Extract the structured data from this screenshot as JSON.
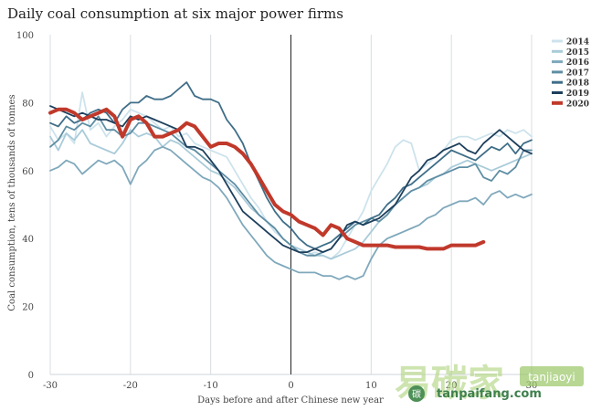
{
  "title": "Daily coal consumption at six major power firms",
  "chart_data": {
    "type": "line",
    "title": "Daily coal consumption at six major power firms",
    "xlabel": "Days before and after Chinese new year",
    "ylabel": "Coal consumption, tens of thousands of tonnes",
    "xlim": [
      -30,
      30
    ],
    "ylim": [
      0,
      100
    ],
    "x_ticks": [
      -30,
      -20,
      -10,
      0,
      10,
      20,
      30
    ],
    "y_ticks": [
      0,
      20,
      40,
      60,
      80,
      100
    ],
    "grid": "vertical",
    "reference_line_x": 0,
    "legend_position": "top-right",
    "series": [
      {
        "name": "2014",
        "color": "#cde3ec",
        "x": [
          -30,
          -29,
          -28,
          -27,
          -26,
          -25,
          -24,
          -23,
          -22,
          -21,
          -20,
          -19,
          -18,
          -17,
          -16,
          -15,
          -14,
          -13,
          -12,
          -11,
          -10,
          -9,
          -8,
          -7,
          -6,
          -5,
          -4,
          -3,
          -2,
          -1,
          0,
          1,
          2,
          3,
          4,
          5,
          6,
          7,
          8,
          9,
          10,
          11,
          12,
          13,
          14,
          15,
          16,
          17,
          18,
          19,
          20,
          21,
          22,
          23,
          24,
          25,
          26,
          27,
          28,
          29,
          30
        ],
        "values": [
          73,
          69,
          71,
          68,
          83,
          72,
          74,
          70,
          73,
          75,
          78,
          77,
          76,
          74,
          72,
          73,
          70,
          71,
          68,
          67,
          66,
          65,
          64,
          60,
          56,
          52,
          49,
          45,
          42,
          40,
          38,
          36,
          35,
          36,
          35,
          34,
          36,
          40,
          44,
          48,
          54,
          58,
          62,
          67,
          69,
          68,
          60,
          62,
          64,
          66,
          69,
          70,
          70,
          69,
          70,
          71,
          70,
          72,
          71,
          72,
          70
        ]
      },
      {
        "name": "2015",
        "color": "#a9cbd9",
        "x": [
          -30,
          -29,
          -28,
          -27,
          -26,
          -25,
          -24,
          -23,
          -22,
          -21,
          -20,
          -19,
          -18,
          -17,
          -16,
          -15,
          -14,
          -13,
          -12,
          -11,
          -10,
          -9,
          -8,
          -7,
          -6,
          -5,
          -4,
          -3,
          -2,
          -1,
          0,
          1,
          2,
          3,
          4,
          5,
          6,
          7,
          8,
          9,
          10,
          11,
          12,
          13,
          14,
          15,
          16,
          17,
          18,
          19,
          20,
          21,
          22,
          23,
          24,
          25,
          26,
          27,
          28,
          29,
          30
        ],
        "values": [
          70,
          66,
          71,
          69,
          72,
          68,
          67,
          66,
          65,
          68,
          72,
          70,
          71,
          70,
          67,
          69,
          68,
          66,
          64,
          62,
          60,
          59,
          57,
          55,
          52,
          49,
          47,
          45,
          43,
          40,
          38,
          37,
          36,
          35,
          35,
          34,
          35,
          36,
          37,
          39,
          42,
          45,
          47,
          50,
          52,
          54,
          55,
          56,
          58,
          59,
          61,
          62,
          63,
          62,
          61,
          60,
          61,
          62,
          63,
          64,
          65
        ]
      },
      {
        "name": "2016",
        "color": "#7fa8bb",
        "x": [
          -30,
          -29,
          -28,
          -27,
          -26,
          -25,
          -24,
          -23,
          -22,
          -21,
          -20,
          -19,
          -18,
          -17,
          -16,
          -15,
          -14,
          -13,
          -12,
          -11,
          -10,
          -9,
          -8,
          -7,
          -6,
          -5,
          -4,
          -3,
          -2,
          -1,
          0,
          1,
          2,
          3,
          4,
          5,
          6,
          7,
          8,
          9,
          10,
          11,
          12,
          13,
          14,
          15,
          16,
          17,
          18,
          19,
          20,
          21,
          22,
          23,
          24,
          25,
          26,
          27,
          28,
          29,
          30
        ],
        "values": [
          60,
          61,
          63,
          62,
          59,
          61,
          63,
          62,
          63,
          61,
          56,
          61,
          63,
          66,
          67,
          66,
          64,
          62,
          60,
          58,
          57,
          55,
          52,
          48,
          44,
          41,
          38,
          35,
          33,
          32,
          31,
          30,
          30,
          30,
          29,
          29,
          28,
          29,
          28,
          29,
          34,
          38,
          40,
          41,
          42,
          43,
          44,
          46,
          47,
          49,
          50,
          51,
          51,
          52,
          50,
          53,
          54,
          52,
          53,
          52,
          53
        ]
      },
      {
        "name": "2017",
        "color": "#5f8ea4",
        "x": [
          -30,
          -29,
          -28,
          -27,
          -26,
          -25,
          -24,
          -23,
          -22,
          -21,
          -20,
          -19,
          -18,
          -17,
          -16,
          -15,
          -14,
          -13,
          -12,
          -11,
          -10,
          -9,
          -8,
          -7,
          -6,
          -5,
          -4,
          -3,
          -2,
          -1,
          0,
          1,
          2,
          3,
          4,
          5,
          6,
          7,
          8,
          9,
          10,
          11,
          12,
          13,
          14,
          15,
          16,
          17,
          18,
          19,
          20,
          21,
          22,
          23,
          24,
          25,
          26,
          27,
          28,
          29,
          30
        ],
        "values": [
          67,
          69,
          73,
          72,
          74,
          73,
          76,
          72,
          72,
          70,
          71,
          74,
          74,
          73,
          72,
          71,
          69,
          67,
          66,
          64,
          62,
          60,
          58,
          56,
          53,
          50,
          47,
          45,
          43,
          40,
          38,
          36,
          35,
          35,
          36,
          37,
          40,
          42,
          44,
          45,
          46,
          45,
          47,
          50,
          52,
          54,
          55,
          57,
          58,
          59,
          60,
          61,
          61,
          62,
          58,
          57,
          60,
          59,
          61,
          66,
          66
        ]
      },
      {
        "name": "2018",
        "color": "#3f6e88",
        "x": [
          -30,
          -29,
          -28,
          -27,
          -26,
          -25,
          -24,
          -23,
          -22,
          -21,
          -20,
          -19,
          -18,
          -17,
          -16,
          -15,
          -14,
          -13,
          -12,
          -11,
          -10,
          -9,
          -8,
          -7,
          -6,
          -5,
          -4,
          -3,
          -2,
          -1,
          0,
          1,
          2,
          3,
          4,
          5,
          6,
          7,
          8,
          9,
          10,
          11,
          12,
          13,
          14,
          15,
          16,
          17,
          18,
          19,
          20,
          21,
          22,
          23,
          24,
          25,
          26,
          27,
          28,
          29,
          30
        ],
        "values": [
          74,
          73,
          76,
          74,
          75,
          77,
          78,
          77,
          74,
          78,
          80,
          80,
          82,
          81,
          81,
          82,
          84,
          86,
          82,
          81,
          81,
          80,
          75,
          72,
          68,
          62,
          57,
          52,
          48,
          45,
          43,
          40,
          38,
          37,
          38,
          39,
          41,
          43,
          45,
          44,
          46,
          47,
          50,
          52,
          55,
          56,
          58,
          60,
          62,
          64,
          66,
          65,
          64,
          63,
          65,
          67,
          66,
          68,
          65,
          68,
          69
        ]
      },
      {
        "name": "2019",
        "color": "#1d3f5c",
        "x": [
          -30,
          -29,
          -28,
          -27,
          -26,
          -25,
          -24,
          -23,
          -22,
          -21,
          -20,
          -19,
          -18,
          -17,
          -16,
          -15,
          -14,
          -13,
          -12,
          -11,
          -10,
          -9,
          -8,
          -7,
          -6,
          -5,
          -4,
          -3,
          -2,
          -1,
          0,
          1,
          2,
          3,
          4,
          5,
          6,
          7,
          8,
          9,
          10,
          11,
          12,
          13,
          14,
          15,
          16,
          17,
          18,
          19,
          20,
          21,
          22,
          23,
          24,
          25,
          26,
          27,
          28,
          29,
          30
        ],
        "values": [
          79,
          78,
          77,
          76,
          77,
          76,
          75,
          75,
          74,
          73,
          76,
          75,
          76,
          75,
          74,
          73,
          72,
          67,
          67,
          66,
          63,
          60,
          56,
          52,
          48,
          46,
          44,
          42,
          40,
          38,
          37,
          36,
          36,
          37,
          36,
          37,
          40,
          44,
          45,
          44,
          45,
          46,
          48,
          50,
          54,
          58,
          60,
          63,
          64,
          66,
          67,
          68,
          66,
          65,
          68,
          70,
          72,
          70,
          68,
          66,
          65
        ]
      },
      {
        "name": "2020",
        "color": "#c0392b",
        "x": [
          -30,
          -29,
          -28,
          -27,
          -26,
          -25,
          -24,
          -23,
          -22,
          -21,
          -20,
          -19,
          -18,
          -17,
          -16,
          -15,
          -14,
          -13,
          -12,
          -11,
          -10,
          -9,
          -8,
          -7,
          -6,
          -5,
          -4,
          -3,
          -2,
          -1,
          0,
          1,
          2,
          3,
          4,
          5,
          6,
          7,
          8,
          9,
          10,
          11,
          12,
          13,
          14,
          15,
          16,
          17,
          18,
          19,
          20,
          21,
          22,
          23,
          24
        ],
        "values": [
          77,
          78,
          78,
          77,
          75,
          76,
          77,
          78,
          76,
          70,
          75,
          76,
          74,
          70,
          70,
          71,
          72,
          74,
          73,
          70,
          67,
          68,
          68,
          67,
          65,
          62,
          58,
          54,
          50,
          48,
          47,
          45,
          44,
          43,
          41,
          44,
          43,
          40,
          39,
          38,
          38,
          38,
          38,
          37.5,
          37.5,
          37.5,
          37.5,
          37,
          37,
          37,
          38,
          38,
          38,
          38,
          39
        ]
      }
    ]
  },
  "watermark": {
    "chinese": "易碳家",
    "latin": "tanjiaoyi",
    "domain": "tanpaifang.com",
    "badge": "碳"
  }
}
